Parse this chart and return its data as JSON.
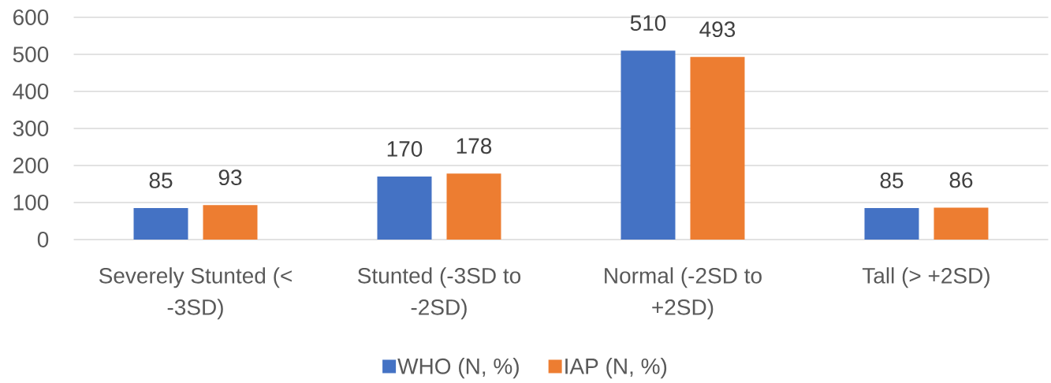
{
  "chart_data": {
    "type": "bar",
    "categories": [
      "Severely Stunted (< -3SD)",
      "Stunted (-3SD to -2SD)",
      "Normal (-2SD to +2SD)",
      "Tall (> +2SD)"
    ],
    "series": [
      {
        "name": "WHO (N, %)",
        "color": "#4472c4",
        "values": [
          85,
          170,
          510,
          85
        ]
      },
      {
        "name": "IAP (N, %)",
        "color": "#ed7d31",
        "values": [
          93,
          178,
          493,
          86
        ]
      }
    ],
    "ylim": [
      0,
      600
    ],
    "yticks": [
      0,
      100,
      200,
      300,
      400,
      500,
      600
    ],
    "grid": "y",
    "legend": "bottom",
    "data_labels": true
  }
}
